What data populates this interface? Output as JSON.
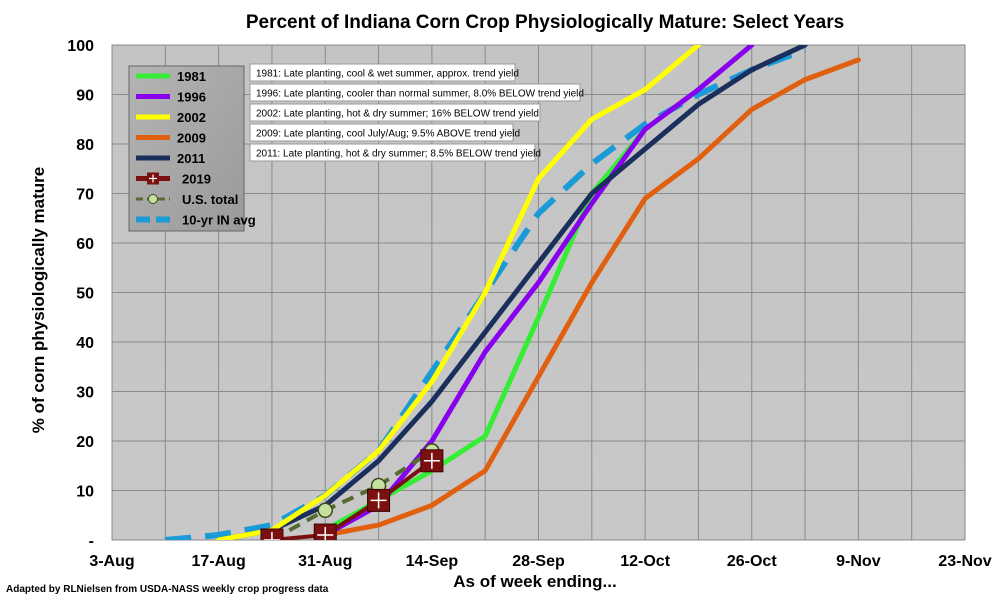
{
  "chart_data": {
    "type": "line",
    "title": "Percent of Indiana Corn Crop Physiologically Mature: Select Years",
    "xlabel": "As of week ending...",
    "ylabel": "% of corn physiologically mature",
    "source_note": "Adapted by RLNielsen from USDA-NASS weekly crop progress data",
    "x_tick_labels": [
      "3-Aug",
      "17-Aug",
      "31-Aug",
      "14-Sep",
      "28-Sep",
      "12-Oct",
      "26-Oct",
      "9-Nov",
      "23-Nov"
    ],
    "y_tick_labels": [
      "-",
      "10",
      "20",
      "30",
      "40",
      "50",
      "60",
      "70",
      "80",
      "90",
      "100"
    ],
    "ylim": [
      0,
      100
    ],
    "grid": true,
    "legend_position": "top-left",
    "series": [
      {
        "name": "1981",
        "color": "#33ee33",
        "style": "solid",
        "points": [
          [
            "31-Aug",
            2
          ],
          [
            "7-Sep",
            8
          ],
          [
            "14-Sep",
            14
          ],
          [
            "21-Sep",
            21
          ],
          [
            "28-Sep",
            45
          ],
          [
            "5-Oct",
            70
          ],
          [
            "12-Oct",
            83
          ]
        ]
      },
      {
        "name": "1996",
        "color": "#8800ee",
        "style": "solid",
        "points": [
          [
            "31-Aug",
            1
          ],
          [
            "7-Sep",
            7
          ],
          [
            "14-Sep",
            20
          ],
          [
            "21-Sep",
            38
          ],
          [
            "28-Sep",
            52
          ],
          [
            "5-Oct",
            68
          ],
          [
            "12-Oct",
            83
          ],
          [
            "19-Oct",
            91
          ],
          [
            "26-Oct",
            100
          ]
        ]
      },
      {
        "name": "2002",
        "color": "#ffff00",
        "style": "solid",
        "points": [
          [
            "17-Aug",
            0
          ],
          [
            "24-Aug",
            2
          ],
          [
            "31-Aug",
            9
          ],
          [
            "7-Sep",
            18
          ],
          [
            "14-Sep",
            32
          ],
          [
            "21-Sep",
            50
          ],
          [
            "28-Sep",
            73
          ],
          [
            "5-Oct",
            85
          ],
          [
            "12-Oct",
            91
          ],
          [
            "19-Oct",
            100
          ]
        ]
      },
      {
        "name": "2009",
        "color": "#e06010",
        "style": "solid",
        "points": [
          [
            "31-Aug",
            1
          ],
          [
            "7-Sep",
            3
          ],
          [
            "14-Sep",
            7
          ],
          [
            "21-Sep",
            14
          ],
          [
            "28-Sep",
            33
          ],
          [
            "5-Oct",
            52
          ],
          [
            "12-Oct",
            69
          ],
          [
            "19-Oct",
            77
          ],
          [
            "26-Oct",
            87
          ],
          [
            "2-Nov",
            93
          ],
          [
            "9-Nov",
            97
          ]
        ]
      },
      {
        "name": "2011",
        "color": "#1a2f5c",
        "style": "solid",
        "points": [
          [
            "17-Aug",
            0
          ],
          [
            "24-Aug",
            2
          ],
          [
            "31-Aug",
            7
          ],
          [
            "7-Sep",
            16
          ],
          [
            "14-Sep",
            28
          ],
          [
            "21-Sep",
            42
          ],
          [
            "28-Sep",
            56
          ],
          [
            "5-Oct",
            70
          ],
          [
            "12-Oct",
            79
          ],
          [
            "19-Oct",
            88
          ],
          [
            "26-Oct",
            95
          ],
          [
            "2-Nov",
            100
          ]
        ]
      },
      {
        "name": "2019",
        "color": "#7a1010",
        "style": "solid-marker",
        "points": [
          [
            "24-Aug",
            0
          ],
          [
            "31-Aug",
            1
          ],
          [
            "7-Sep",
            8
          ],
          [
            "14-Sep",
            16
          ]
        ]
      },
      {
        "name": "U.S. total",
        "color": "#556b2f",
        "style": "dashed-marker",
        "points": [
          [
            "24-Aug",
            0
          ],
          [
            "31-Aug",
            6
          ],
          [
            "7-Sep",
            11
          ],
          [
            "14-Sep",
            18
          ]
        ]
      },
      {
        "name": "10-yr IN avg",
        "color": "#1a9ad6",
        "style": "dashed",
        "points": [
          [
            "10-Aug",
            0
          ],
          [
            "17-Aug",
            1
          ],
          [
            "24-Aug",
            3
          ],
          [
            "31-Aug",
            9
          ],
          [
            "7-Sep",
            18
          ],
          [
            "14-Sep",
            34
          ],
          [
            "21-Sep",
            50
          ],
          [
            "28-Sep",
            66
          ],
          [
            "5-Oct",
            76
          ],
          [
            "12-Oct",
            84
          ],
          [
            "19-Oct",
            90
          ],
          [
            "26-Oct",
            95
          ],
          [
            "2-Nov",
            99
          ]
        ]
      }
    ],
    "annotations": [
      "1981: Late planting, cool & wet summer, approx. trend yield",
      "1996: Late planting, cooler than normal summer, 8.0% BELOW trend yield",
      "2002: Late planting, hot & dry summer; 16% BELOW trend yield",
      "2009: Late planting, cool July/Aug; 9.5% ABOVE trend yield",
      "2011: Late planting, hot & dry summer; 8.5% BELOW trend yield"
    ]
  }
}
